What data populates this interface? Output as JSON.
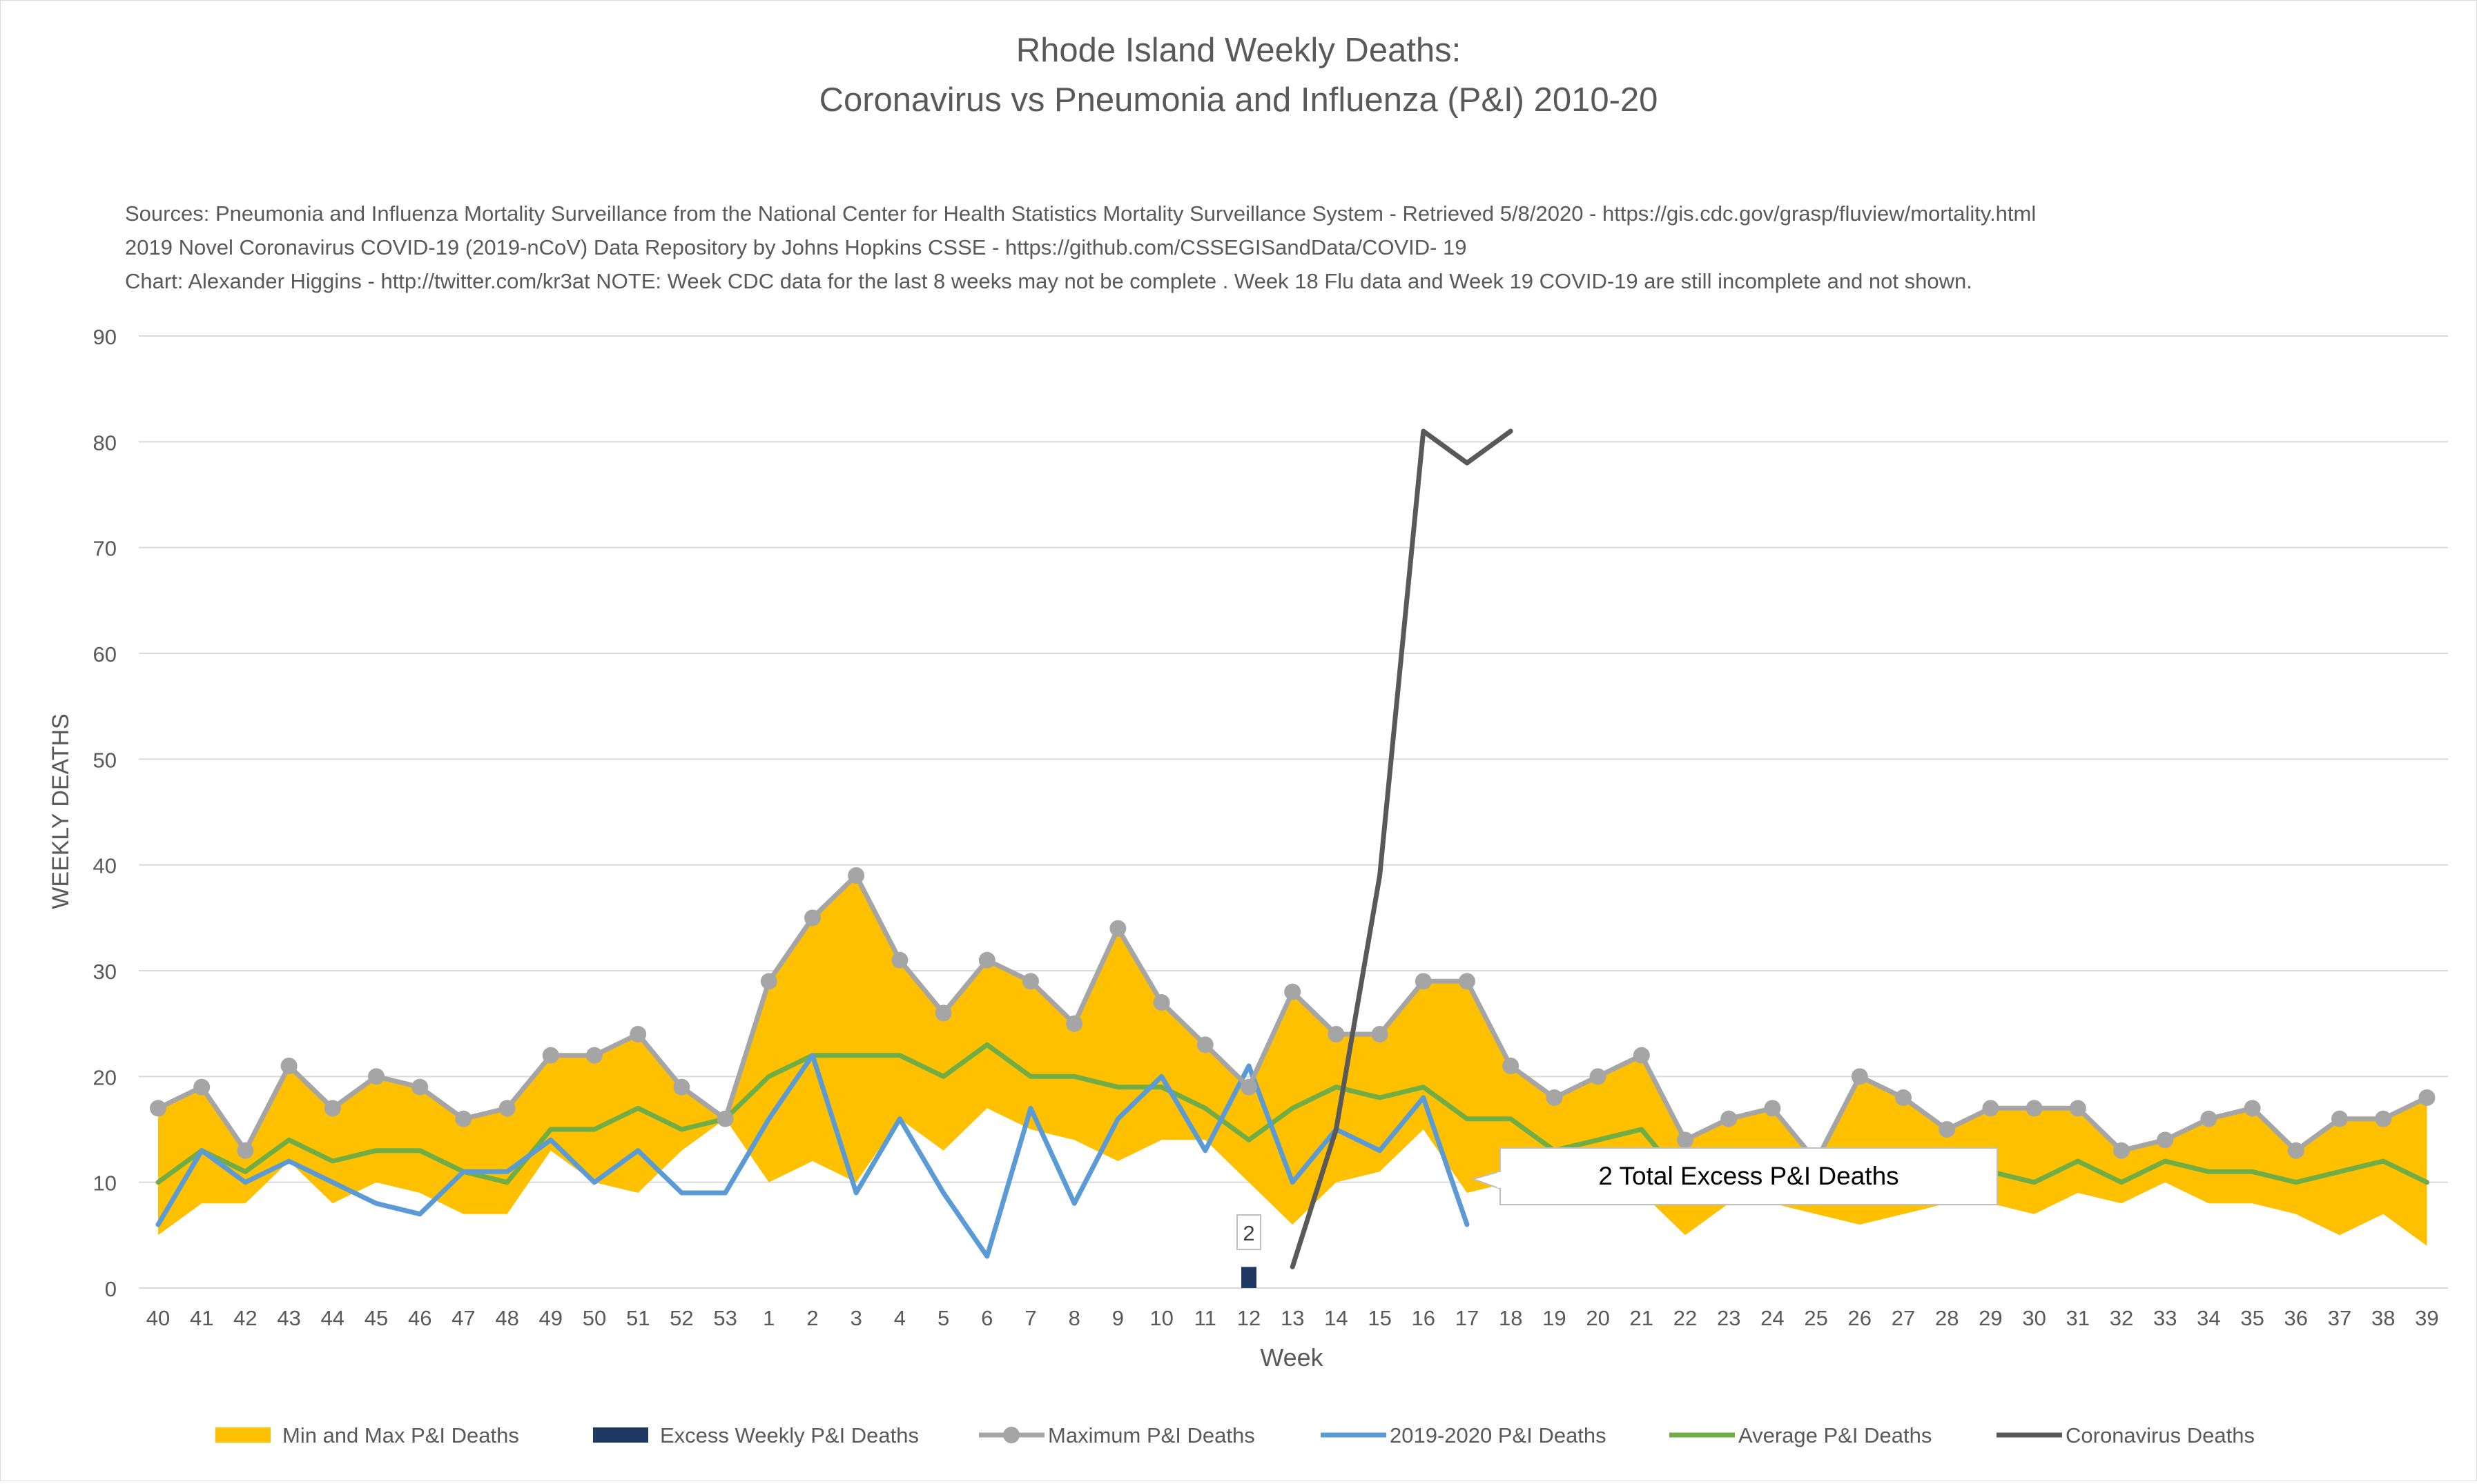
{
  "chart_data": {
    "type": "line",
    "title_line1": "Rhode Island Weekly Deaths:",
    "title_line2": "Coronavirus vs Pneumonia and Influenza (P&I) 2010-20",
    "notes": [
      "Sources: Pneumonia and Influenza Mortality Surveillance from the National Center for Health Statistics Mortality Surveillance System - Retrieved 5/8/2020 - https://gis.cdc.gov/grasp/fluview/mortality.html",
      "2019 Novel Coronavirus COVID-19 (2019-nCoV) Data Repository by Johns Hopkins CSSE - https://github.com/CSSEGISandData/COVID- 19",
      "Chart: Alexander Higgins - http://twitter.com/kr3at   NOTE: Week CDC data for the last 8 weeks may not be complete . Week 18 Flu data and Week 19 COVID-19 are still incomplete and not shown."
    ],
    "xlabel": "Week",
    "ylabel": "WEEKLY DEATHS",
    "ylim": [
      0,
      90
    ],
    "yticks": [
      "0",
      "10",
      "20",
      "30",
      "40",
      "50",
      "60",
      "70",
      "80",
      "90"
    ],
    "grid": true,
    "legend_position": "bottom",
    "categories": [
      "40",
      "41",
      "42",
      "43",
      "44",
      "45",
      "46",
      "47",
      "48",
      "49",
      "50",
      "51",
      "52",
      "53",
      "1",
      "2",
      "3",
      "4",
      "5",
      "6",
      "7",
      "8",
      "9",
      "10",
      "11",
      "12",
      "13",
      "14",
      "15",
      "16",
      "17",
      "18",
      "19",
      "20",
      "21",
      "22",
      "23",
      "24",
      "25",
      "26",
      "27",
      "28",
      "29",
      "30",
      "31",
      "32",
      "33",
      "34",
      "35",
      "36",
      "37",
      "38",
      "39"
    ],
    "series": [
      {
        "name": "Min and Max P&I Deaths",
        "kind": "band",
        "color": "#FFC000",
        "min": [
          5,
          8,
          8,
          12,
          8,
          10,
          9,
          7,
          7,
          13,
          10,
          9,
          13,
          16,
          10,
          12,
          10,
          16,
          13,
          17,
          15,
          14,
          12,
          14,
          14,
          10,
          6,
          10,
          11,
          15,
          9,
          10,
          11,
          11,
          9,
          5,
          8,
          8,
          7,
          6,
          7,
          8,
          8,
          7,
          9,
          8,
          10,
          8,
          8,
          7,
          5,
          7,
          4
        ],
        "max": [
          17,
          19,
          13,
          21,
          17,
          20,
          19,
          16,
          17,
          22,
          22,
          24,
          19,
          16,
          29,
          35,
          39,
          31,
          26,
          31,
          29,
          25,
          34,
          27,
          23,
          19,
          28,
          24,
          24,
          29,
          29,
          21,
          18,
          20,
          22,
          14,
          16,
          17,
          12,
          20,
          18,
          15,
          17,
          17,
          17,
          13,
          14,
          16,
          17,
          13,
          16,
          16,
          18
        ]
      },
      {
        "name": "Excess Weekly P&I Deaths",
        "kind": "bar",
        "color": "#1F3864",
        "category": "12",
        "value": 2,
        "label": "2"
      },
      {
        "name": "Maximum P&I Deaths",
        "kind": "line-markers",
        "color": "#A5A5A5",
        "values": [
          17,
          19,
          13,
          21,
          17,
          20,
          19,
          16,
          17,
          22,
          22,
          24,
          19,
          16,
          29,
          35,
          39,
          31,
          26,
          31,
          29,
          25,
          34,
          27,
          23,
          19,
          28,
          24,
          24,
          29,
          29,
          21,
          18,
          20,
          22,
          14,
          16,
          17,
          12,
          20,
          18,
          15,
          17,
          17,
          17,
          13,
          14,
          16,
          17,
          13,
          16,
          16,
          18
        ]
      },
      {
        "name": "2019-2020 P&I Deaths",
        "kind": "line",
        "color": "#5B9BD5",
        "values": [
          6,
          13,
          10,
          12,
          10,
          8,
          7,
          11,
          11,
          14,
          10,
          13,
          9,
          9,
          16,
          22,
          9,
          16,
          9,
          3,
          17,
          8,
          16,
          20,
          13,
          21,
          10,
          15,
          13,
          18,
          6,
          null,
          null,
          null,
          null,
          null,
          null,
          null,
          null,
          null,
          null,
          null,
          null,
          null,
          null,
          null,
          null,
          null,
          null,
          null,
          null,
          null,
          null
        ]
      },
      {
        "name": "Average P&I Deaths",
        "kind": "line",
        "color": "#70AD47",
        "values": [
          10,
          13,
          11,
          14,
          12,
          13,
          13,
          11,
          10,
          15,
          15,
          17,
          15,
          16,
          20,
          22,
          22,
          22,
          20,
          23,
          20,
          20,
          19,
          19,
          17,
          14,
          17,
          19,
          18,
          19,
          16,
          16,
          13,
          14,
          15,
          10,
          11,
          11,
          10,
          12,
          11,
          11,
          11,
          10,
          12,
          10,
          12,
          11,
          11,
          10,
          11,
          12,
          10
        ]
      },
      {
        "name": "Coronavirus Deaths",
        "kind": "line",
        "color": "#595959",
        "values": [
          null,
          null,
          null,
          null,
          null,
          null,
          null,
          null,
          null,
          null,
          null,
          null,
          null,
          null,
          null,
          null,
          null,
          null,
          null,
          null,
          null,
          null,
          null,
          null,
          null,
          null,
          2,
          15,
          39,
          81,
          78,
          81,
          null,
          null,
          null,
          null,
          null,
          null,
          null,
          null,
          null,
          null,
          null,
          null,
          null,
          null,
          null,
          null,
          null,
          null,
          null,
          null,
          null
        ]
      }
    ],
    "annotation": "2 Total Excess P&I Deaths"
  }
}
